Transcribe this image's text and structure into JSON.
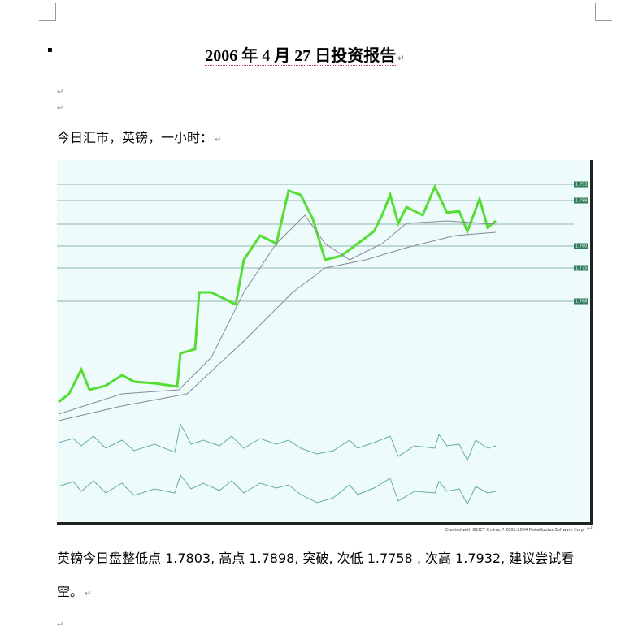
{
  "paragraph_mark": "↵",
  "bullet": "▪",
  "title": "2006 年 4 月 27 日投资报告",
  "intro": "今日汇市，英镑，一小时：",
  "chart_image": {
    "levels": [
      "1.7932",
      "1.7898",
      "1.7803",
      "1.7758",
      "1.7689"
    ],
    "credit": "Created with GCICT Online, ? 2002-2004 MetaQuotes Software Corp."
  },
  "body": "英镑今日盘整低点 1.7803, 高点 1.7898, 突破, 次低 1.7758 , 次高 1.7932, 建议尝试看空。"
}
